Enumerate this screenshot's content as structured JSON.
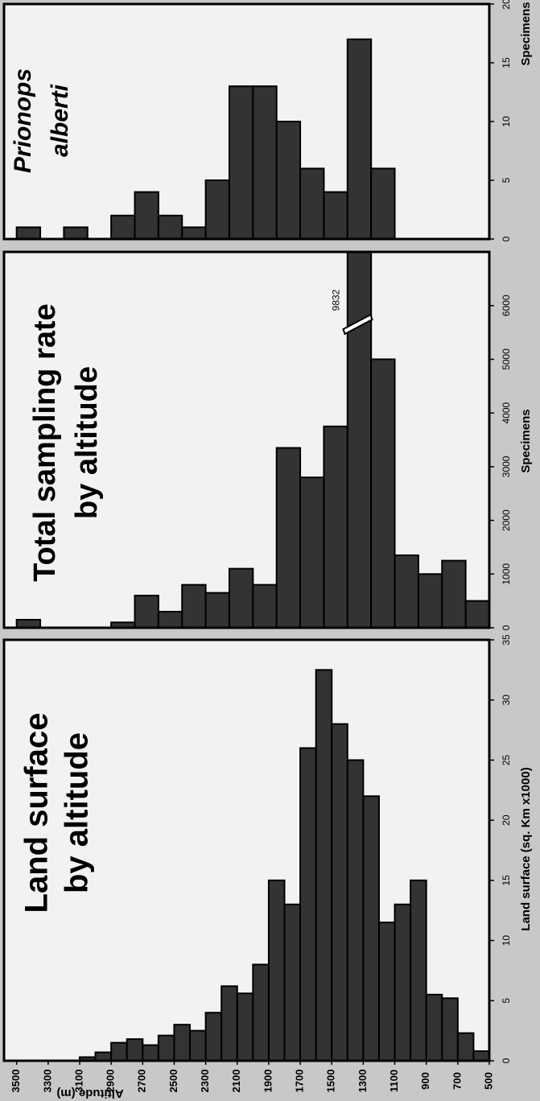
{
  "chart_data": [
    {
      "type": "histogram",
      "title": [
        "Land surface",
        "by altitude"
      ],
      "ylabel": "Land surface (sq. Km x1000)",
      "xlabel": "Altitude (m)",
      "bins": [
        3100,
        3000,
        2900,
        2800,
        2700,
        2600,
        2500,
        2400,
        2300,
        2200,
        2100,
        2000,
        1900,
        1800,
        1700,
        1600,
        1500,
        1400,
        1300,
        1200,
        1100,
        1000,
        900,
        800,
        700,
        600,
        500
      ],
      "values": [
        0.3,
        0.7,
        1.5,
        1.8,
        1.3,
        2.1,
        3,
        2.5,
        4,
        6.2,
        5.6,
        8,
        15,
        13,
        26,
        32.5,
        28,
        25,
        22,
        11.5,
        13,
        15,
        5.5,
        5.2,
        2.3,
        0.8
      ],
      "color": "#333333",
      "xlim": [
        3580,
        500
      ],
      "xticks": [
        3500,
        3300,
        3100,
        2900,
        2700,
        2500,
        2300,
        2100,
        1900,
        1700,
        1500,
        1300,
        1100,
        900,
        700,
        500
      ],
      "ylim": [
        0,
        35
      ],
      "yticks": [
        0,
        5,
        10,
        15,
        20,
        25,
        30,
        35
      ]
    },
    {
      "type": "histogram",
      "title": [
        "Total sampling rate",
        "by altitude"
      ],
      "ylabel": "Specimens",
      "bins": [
        3500,
        3350,
        3200,
        3050,
        2900,
        2750,
        2600,
        2450,
        2300,
        2150,
        2000,
        1850,
        1700,
        1550,
        1400,
        1250,
        1100,
        950,
        800,
        650,
        500
      ],
      "values": [
        150,
        0,
        0,
        0,
        100,
        600,
        300,
        800,
        650,
        1100,
        800,
        3350,
        2800,
        3750,
        9832,
        5000,
        1350,
        1000,
        1250,
        500
      ],
      "value_labels": [
        null,
        null,
        null,
        null,
        null,
        null,
        null,
        null,
        null,
        null,
        null,
        null,
        null,
        null,
        "9832",
        null,
        null,
        null,
        null,
        null
      ],
      "color": "#333333",
      "xlim": [
        3580,
        500
      ],
      "ylim": [
        0,
        7000
      ],
      "yticks": [
        0,
        1000,
        2000,
        3000,
        4000,
        5000,
        6000
      ]
    },
    {
      "type": "histogram",
      "title": [
        "Prionops",
        "alberti"
      ],
      "ylabel": "Specimens",
      "bins": [
        3500,
        3350,
        3200,
        3050,
        2900,
        2750,
        2600,
        2450,
        2300,
        2150,
        2000,
        1850,
        1700,
        1550,
        1400,
        1250,
        1100
      ],
      "values": [
        1,
        0,
        1,
        0,
        2,
        4,
        2,
        1,
        5,
        13,
        13,
        10,
        6,
        4,
        17,
        6
      ],
      "color": "#333333",
      "xlim": [
        3580,
        500
      ],
      "ylim": [
        0,
        20
      ],
      "yticks": [
        0,
        5,
        10,
        15,
        20
      ]
    }
  ]
}
